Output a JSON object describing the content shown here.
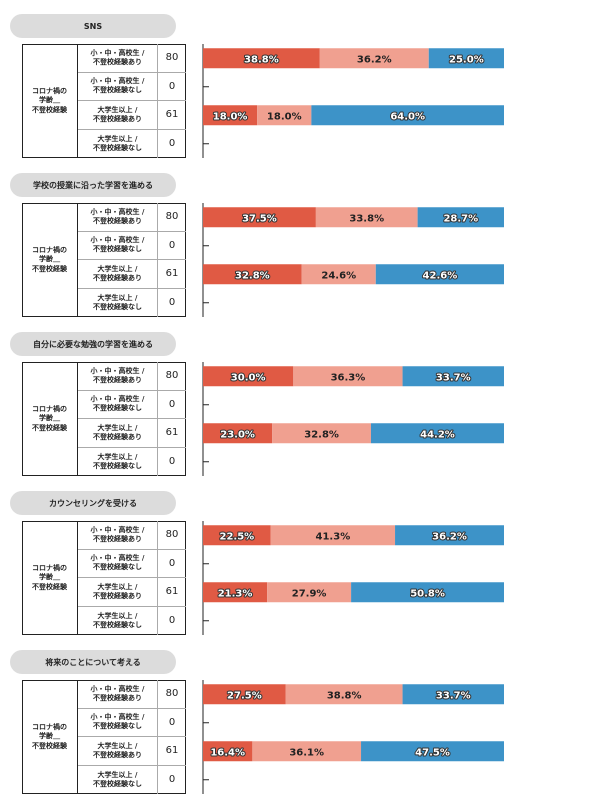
{
  "chart_data": [
    {
      "type": "bar",
      "title": "SNS",
      "group_label": "コロナ禍の\n学齢＿\n不登校経験",
      "categories": [
        "小・中・高校生 /\n不登校経験あり",
        "小・中・高校生 /\n不登校経験なし",
        "大学生以上 /\n不登校経験あり",
        "大学生以上 /\n不登校経験なし"
      ],
      "counts": [
        80,
        0,
        61,
        0
      ],
      "series": [
        {
          "color": "#e05a44",
          "values": [
            38.8,
            null,
            18.0,
            null
          ],
          "value_labels": [
            "38.8%",
            null,
            "18.0%",
            null
          ]
        },
        {
          "color": "#f0a090",
          "values": [
            36.2,
            null,
            18.0,
            null
          ],
          "value_labels": [
            "36.2%",
            null,
            "18.0%",
            null
          ]
        },
        {
          "color": "#3d93c8",
          "values": [
            25.0,
            null,
            64.0,
            null
          ],
          "value_labels": [
            "25.0%",
            null,
            "64.0%",
            null
          ]
        }
      ]
    },
    {
      "type": "bar",
      "title": "学校の授業に沿った学習を進める",
      "group_label": "コロナ禍の\n学齢＿\n不登校経験",
      "categories": [
        "小・中・高校生 /\n不登校経験あり",
        "小・中・高校生 /\n不登校経験なし",
        "大学生以上 /\n不登校経験あり",
        "大学生以上 /\n不登校経験なし"
      ],
      "counts": [
        80,
        0,
        61,
        0
      ],
      "series": [
        {
          "color": "#e05a44",
          "values": [
            37.5,
            null,
            32.8,
            null
          ],
          "value_labels": [
            "37.5%",
            null,
            "32.8%",
            null
          ]
        },
        {
          "color": "#f0a090",
          "values": [
            33.8,
            null,
            24.6,
            null
          ],
          "value_labels": [
            "33.8%",
            null,
            "24.6%",
            null
          ]
        },
        {
          "color": "#3d93c8",
          "values": [
            28.7,
            null,
            42.6,
            null
          ],
          "value_labels": [
            "28.7%",
            null,
            "42.6%",
            null
          ]
        }
      ]
    },
    {
      "type": "bar",
      "title": "自分に必要な勉強の学習を進める",
      "group_label": "コロナ禍の\n学齢＿\n不登校経験",
      "categories": [
        "小・中・高校生 /\n不登校経験あり",
        "小・中・高校生 /\n不登校経験なし",
        "大学生以上 /\n不登校経験あり",
        "大学生以上 /\n不登校経験なし"
      ],
      "counts": [
        80,
        0,
        61,
        0
      ],
      "series": [
        {
          "color": "#e05a44",
          "values": [
            30.0,
            null,
            23.0,
            null
          ],
          "value_labels": [
            "30.0%",
            null,
            "23.0%",
            null
          ]
        },
        {
          "color": "#f0a090",
          "values": [
            36.3,
            null,
            32.8,
            null
          ],
          "value_labels": [
            "36.3%",
            null,
            "32.8%",
            null
          ]
        },
        {
          "color": "#3d93c8",
          "values": [
            33.7,
            null,
            44.2,
            null
          ],
          "value_labels": [
            "33.7%",
            null,
            "44.2%",
            null
          ]
        }
      ]
    },
    {
      "type": "bar",
      "title": "カウンセリングを受ける",
      "group_label": "コロナ禍の\n学齢＿\n不登校経験",
      "categories": [
        "小・中・高校生 /\n不登校経験あり",
        "小・中・高校生 /\n不登校経験なし",
        "大学生以上 /\n不登校経験あり",
        "大学生以上 /\n不登校経験なし"
      ],
      "counts": [
        80,
        0,
        61,
        0
      ],
      "series": [
        {
          "color": "#e05a44",
          "values": [
            22.5,
            null,
            21.3,
            null
          ],
          "value_labels": [
            "22.5%",
            null,
            "21.3%",
            null
          ]
        },
        {
          "color": "#f0a090",
          "values": [
            41.3,
            null,
            27.9,
            null
          ],
          "value_labels": [
            "41.3%",
            null,
            "27.9%",
            null
          ]
        },
        {
          "color": "#3d93c8",
          "values": [
            36.2,
            null,
            50.8,
            null
          ],
          "value_labels": [
            "36.2%",
            null,
            "50.8%",
            null
          ]
        }
      ]
    },
    {
      "type": "bar",
      "title": "将来のことについて考える",
      "group_label": "コロナ禍の\n学齢＿\n不登校経験",
      "categories": [
        "小・中・高校生 /\n不登校経験あり",
        "小・中・高校生 /\n不登校経験なし",
        "大学生以上 /\n不登校経験あり",
        "大学生以上 /\n不登校経験なし"
      ],
      "counts": [
        80,
        0,
        61,
        0
      ],
      "series": [
        {
          "color": "#e05a44",
          "values": [
            27.5,
            null,
            16.4,
            null
          ],
          "value_labels": [
            "27.5%",
            null,
            "16.4%",
            null
          ]
        },
        {
          "color": "#f0a090",
          "values": [
            38.8,
            null,
            36.1,
            null
          ],
          "value_labels": [
            "38.8%",
            null,
            "36.1%",
            null
          ]
        },
        {
          "color": "#3d93c8",
          "values": [
            33.7,
            null,
            47.5,
            null
          ],
          "value_labels": [
            "33.7%",
            null,
            "47.5%",
            null
          ]
        }
      ]
    }
  ]
}
